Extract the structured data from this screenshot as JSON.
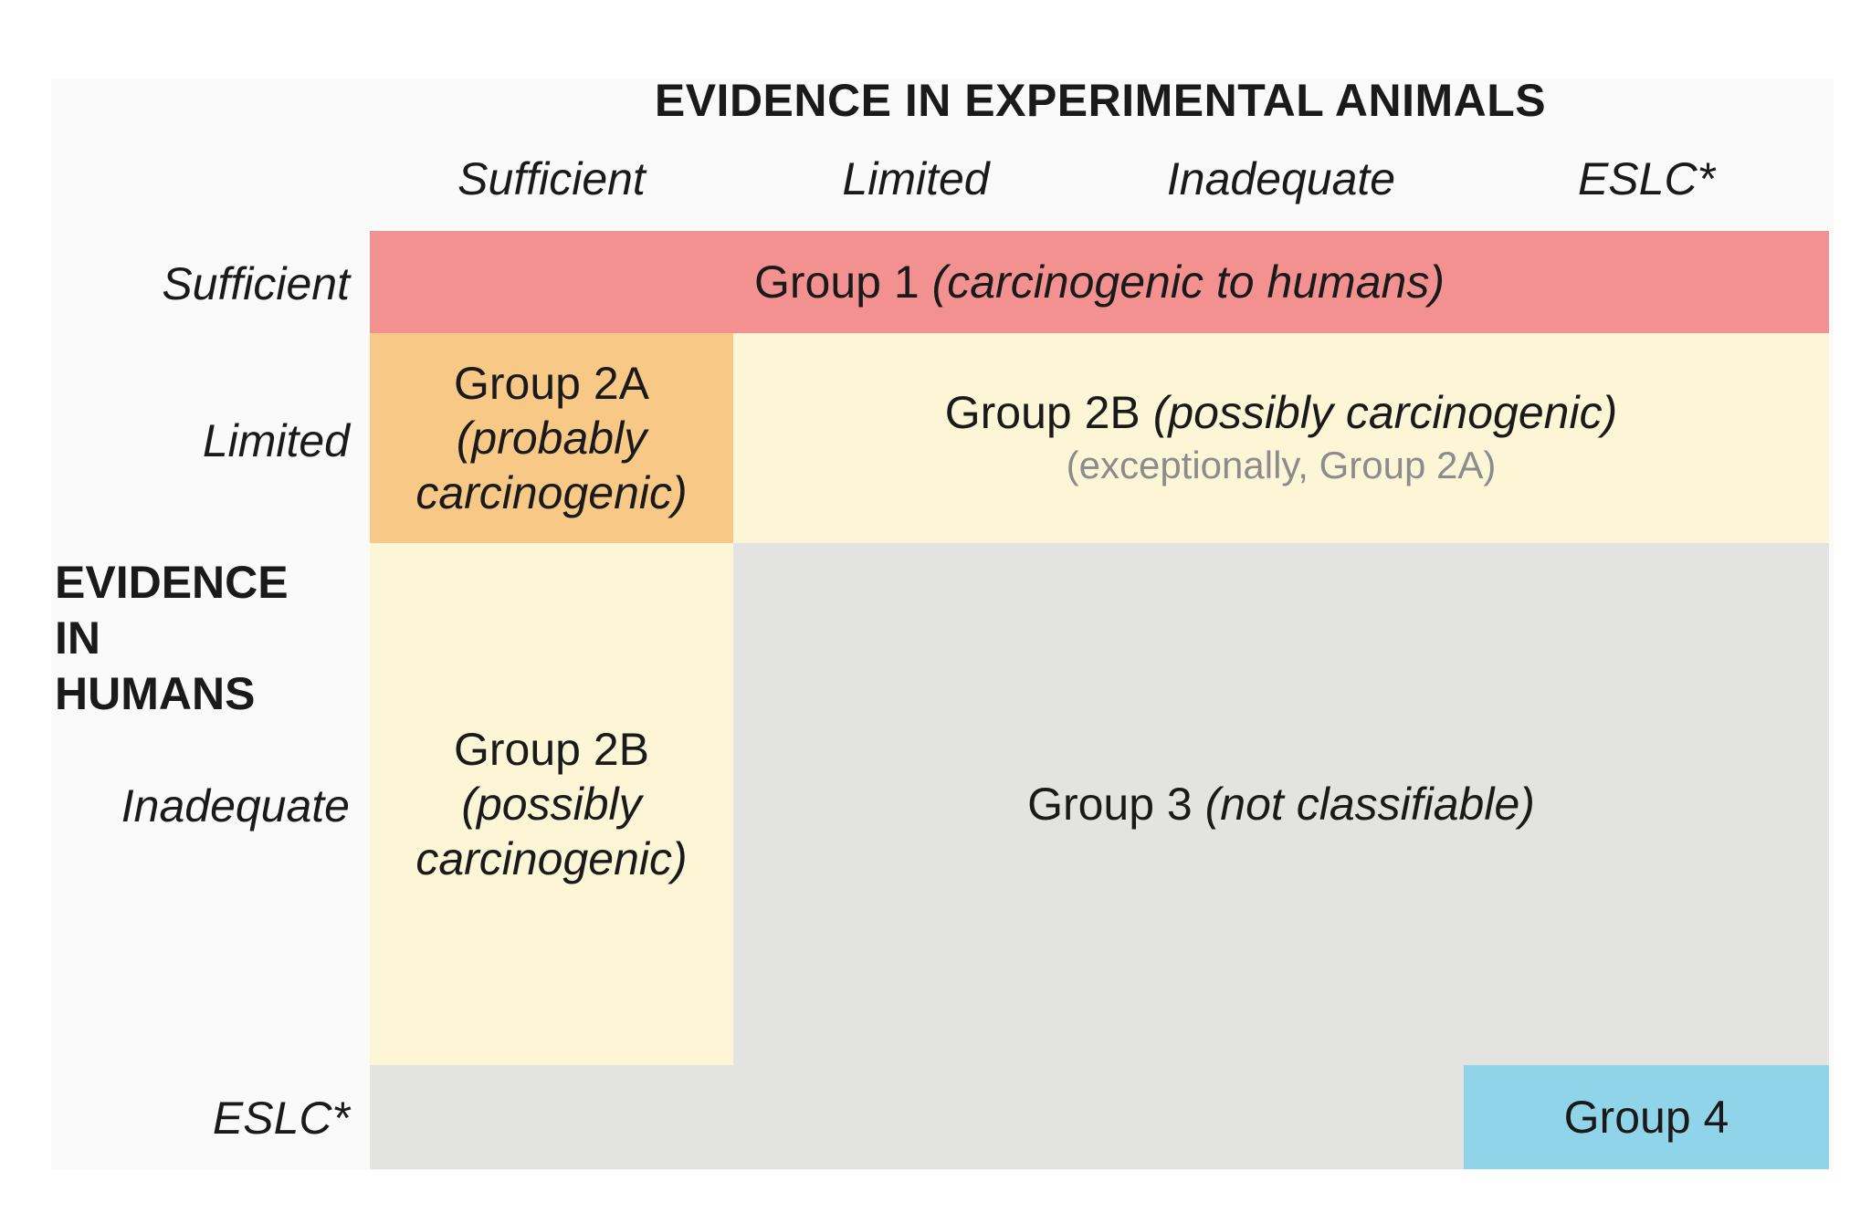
{
  "x_axis_title": "EVIDENCE IN EXPERIMENTAL ANIMALS",
  "y_axis_title": [
    "EVIDENCE",
    "IN",
    "HUMANS"
  ],
  "columns": [
    "Sufficient",
    "Limited",
    "Inadequate",
    "ESLC*"
  ],
  "rows": [
    "Sufficient",
    "Limited",
    "Inadequate",
    "ESLC*"
  ],
  "cells": {
    "group1": {
      "label": "Group 1",
      "qualifier": "(carcinogenic to humans)",
      "color": "#f2918f"
    },
    "group2a": {
      "label": "Group 2A",
      "qualifier_line1": "(probably",
      "qualifier_line2": "carcinogenic)",
      "color": "#f8c986"
    },
    "group2b_limited": {
      "label": "Group 2B",
      "qualifier": "(possibly carcinogenic)",
      "note": "(exceptionally, Group 2A)",
      "color": "#fdf6d6"
    },
    "group2b_inadequate": {
      "label": "Group 2B",
      "qualifier_line1": "(possibly",
      "qualifier_line2": "carcinogenic)",
      "color": "#fdf6d6"
    },
    "group3": {
      "label": "Group 3",
      "qualifier": "(not classifiable)",
      "color": "#e3e3e1"
    },
    "group4": {
      "label": "Group 4",
      "color": "#90d4ea"
    }
  }
}
